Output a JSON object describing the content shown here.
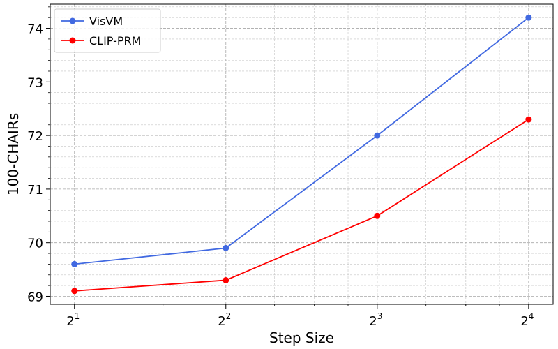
{
  "chart_data": {
    "type": "line",
    "xlabel": "Step Size",
    "ylabel": "100-CHAIRs",
    "x_scale": "log2",
    "x": [
      2,
      4,
      8,
      16
    ],
    "x_ticks": [
      {
        "value": 2,
        "base": "2",
        "exp": "1"
      },
      {
        "value": 4,
        "base": "2",
        "exp": "2"
      },
      {
        "value": 8,
        "base": "2",
        "exp": "3"
      },
      {
        "value": 16,
        "base": "2",
        "exp": "4"
      }
    ],
    "xlim": [
      1.79,
      17.9
    ],
    "ylim": [
      68.85,
      74.45
    ],
    "y_ticks": [
      69,
      70,
      71,
      72,
      73,
      74
    ],
    "grid": true,
    "legend_position": "top-left",
    "series": [
      {
        "name": "VisVM",
        "color": "#4169E1",
        "values": [
          69.6,
          69.9,
          72.0,
          74.2
        ]
      },
      {
        "name": "CLIP-PRM",
        "color": "#FF0000",
        "values": [
          69.1,
          69.3,
          70.5,
          72.3
        ]
      }
    ]
  }
}
